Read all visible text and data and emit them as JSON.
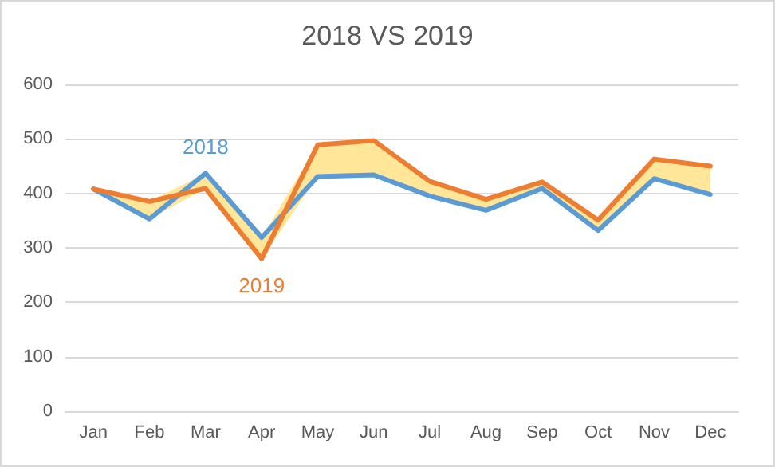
{
  "chart_data": {
    "type": "line",
    "title": "2018 VS 2019",
    "categories": [
      "Jan",
      "Feb",
      "Mar",
      "Apr",
      "May",
      "Jun",
      "Jul",
      "Aug",
      "Sep",
      "Oct",
      "Nov",
      "Dec"
    ],
    "series": [
      {
        "name": "2018",
        "color": "#5b9bd5",
        "values": [
          408,
          353,
          437,
          319,
          431,
          434,
          395,
          369,
          409,
          332,
          427,
          398
        ]
      },
      {
        "name": "2019",
        "color": "#ed7d31",
        "values": [
          408,
          385,
          409,
          280,
          489,
          497,
          422,
          389,
          421,
          351,
          463,
          450
        ],
        "lower": [
          408,
          353,
          409,
          280,
          431,
          434,
          395,
          369,
          409,
          332,
          427,
          398
        ],
        "upper": [
          408,
          385,
          437,
          319,
          489,
          497,
          422,
          389,
          421,
          351,
          463,
          450
        ]
      }
    ],
    "ylim": [
      0,
      600
    ],
    "yticks": [
      0,
      100,
      200,
      300,
      400,
      500,
      600
    ],
    "grid": "y",
    "legend": false,
    "marker": "none",
    "line_style": "solid"
  }
}
